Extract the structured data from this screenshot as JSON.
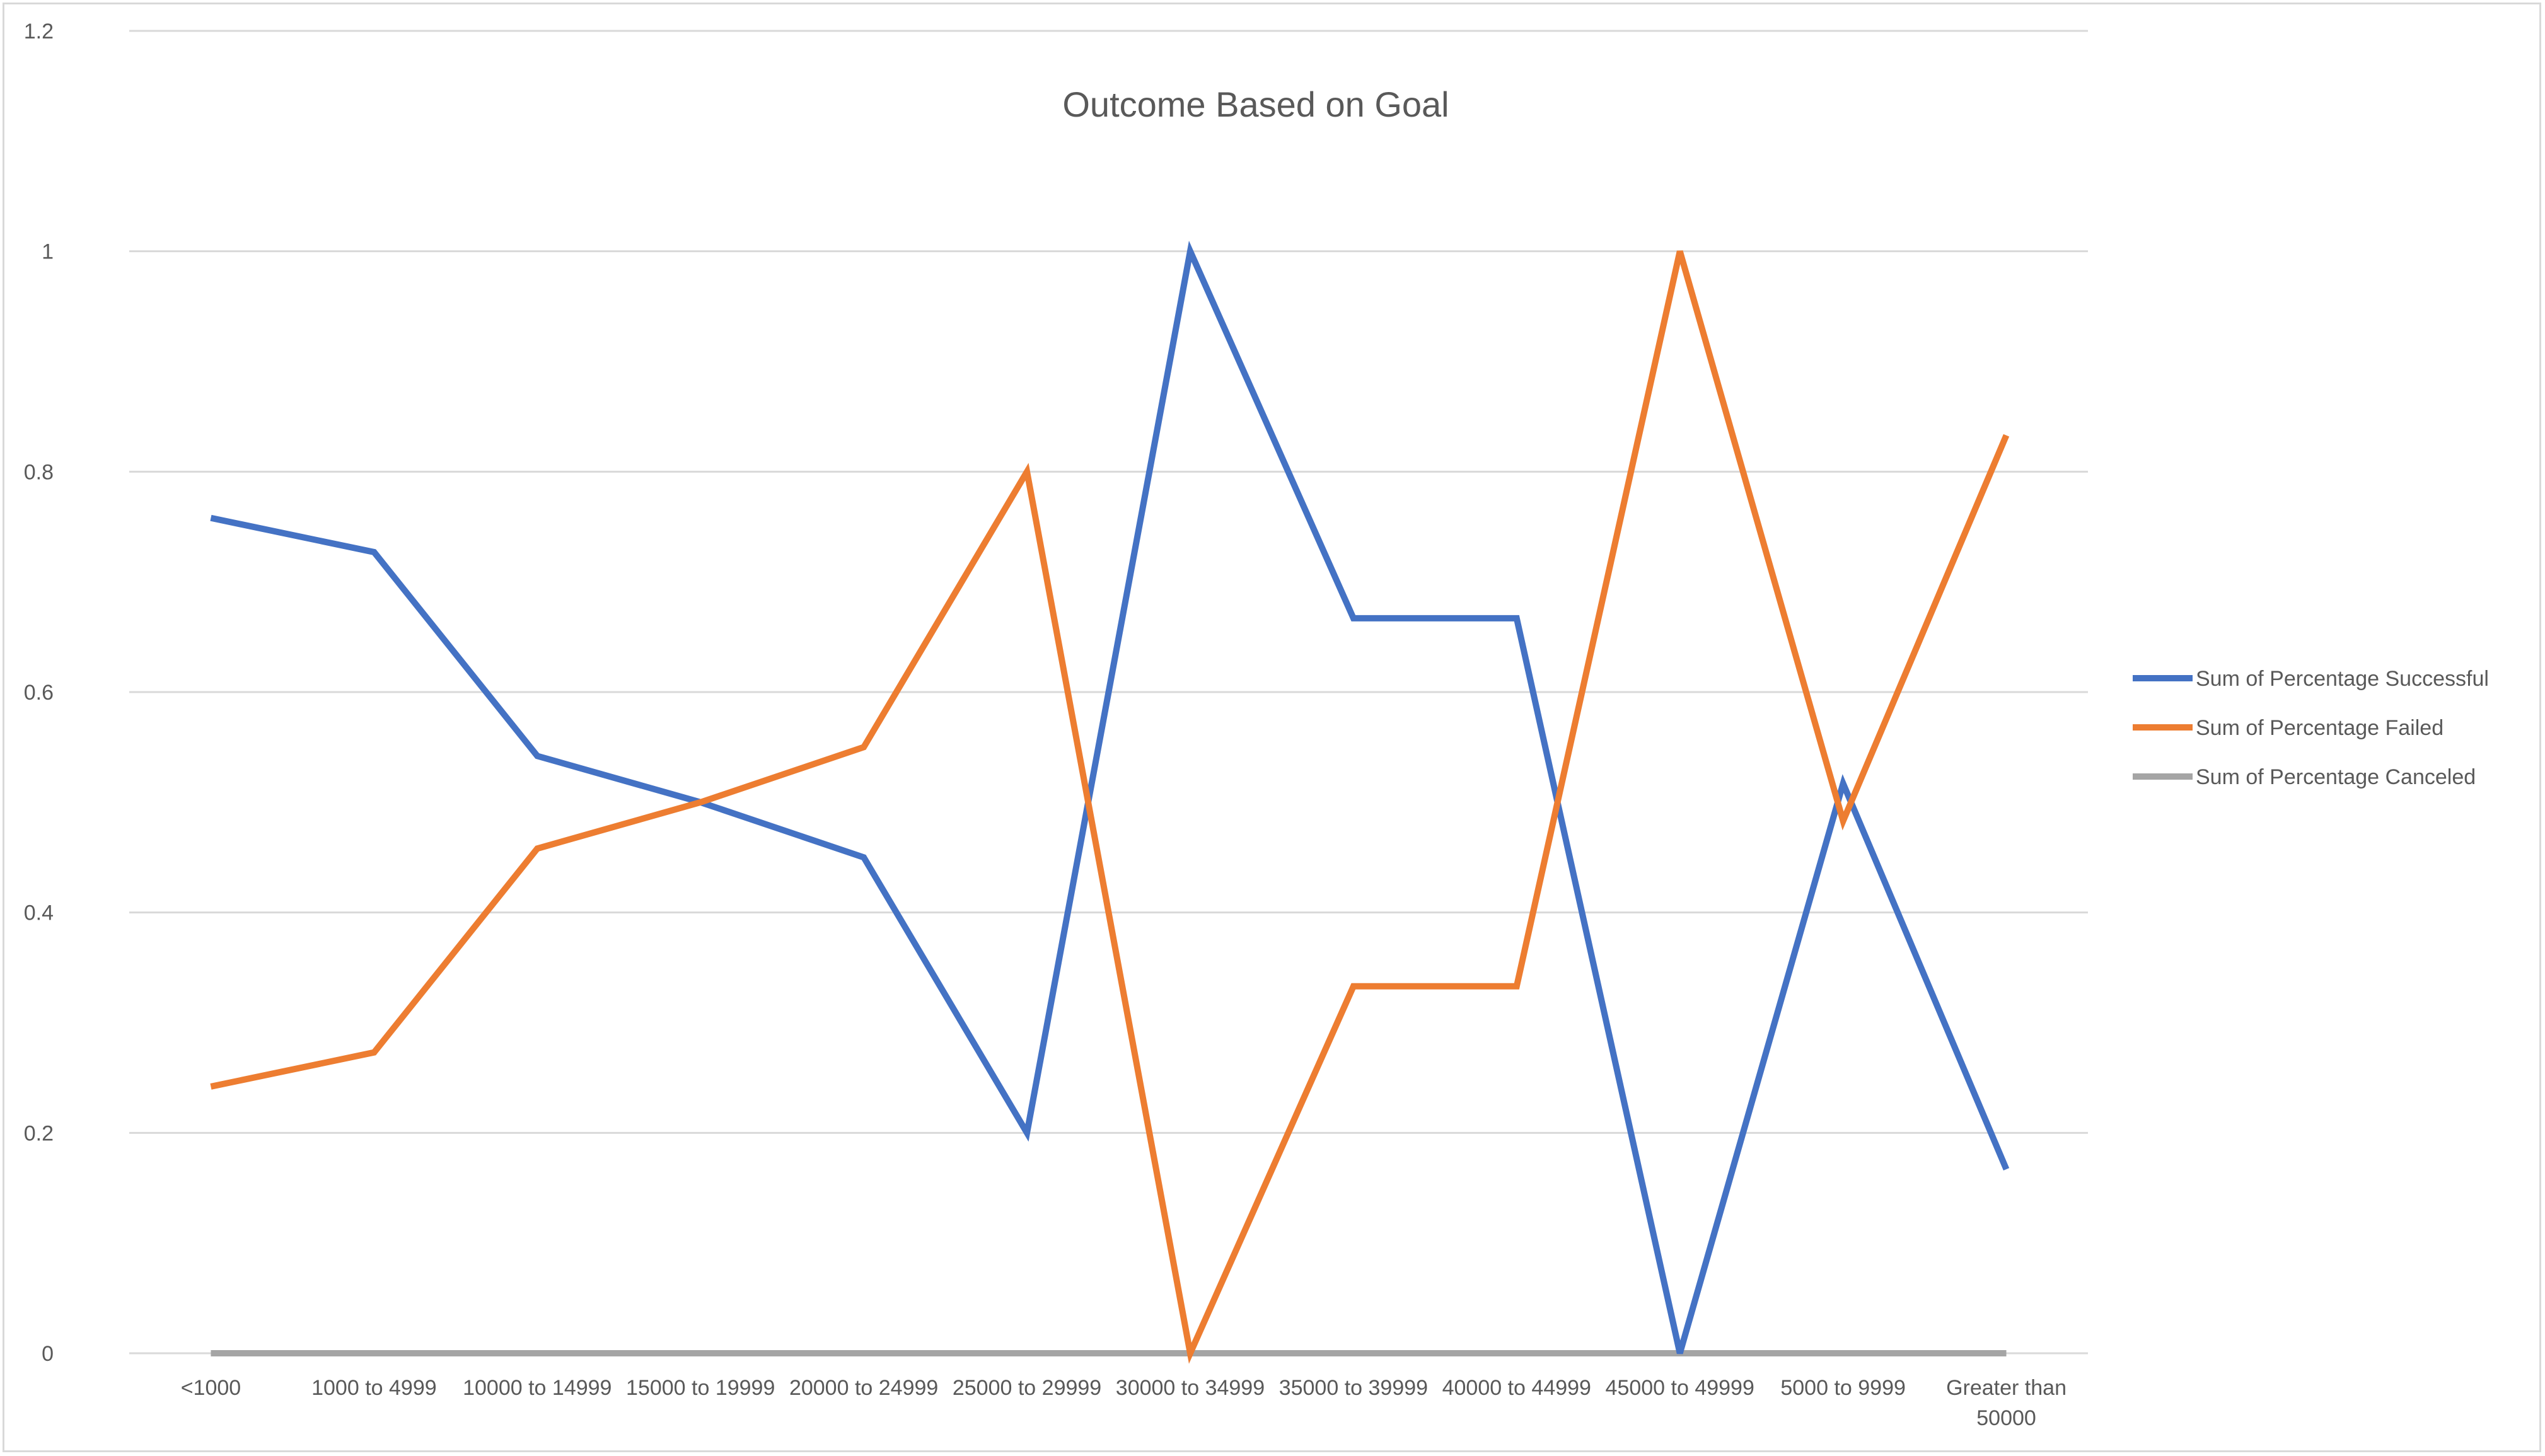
{
  "chart_data": {
    "type": "line",
    "title": "Outcome Based on Goal",
    "xlabel": "",
    "ylabel": "",
    "ylim": [
      0,
      1.2
    ],
    "yticks": [
      "0",
      "0.2",
      "0.4",
      "0.6",
      "0.8",
      "1",
      "1.2"
    ],
    "grid": true,
    "legend_position": "right",
    "categories": [
      "<1000",
      "1000 to 4999",
      "10000 to 14999",
      "15000 to 19999",
      "20000 to 24999",
      "25000 to 29999",
      "30000 to 34999",
      "35000 to 39999",
      "40000 to 44999",
      "45000 to 49999",
      "5000 to 9999",
      "Greater than 50000"
    ],
    "series": [
      {
        "name": "Sum of Percentage Successful",
        "color": "#4472c4",
        "values": [
          0.758,
          0.727,
          0.542,
          0.5,
          0.45,
          0.2,
          1.0,
          0.667,
          0.667,
          0.0,
          0.517,
          0.167
        ]
      },
      {
        "name": "Sum of Percentage Failed",
        "color": "#ed7d31",
        "values": [
          0.242,
          0.273,
          0.458,
          0.5,
          0.55,
          0.8,
          0.0,
          0.333,
          0.333,
          1.0,
          0.483,
          0.833
        ]
      },
      {
        "name": "Sum of Percentage Canceled",
        "color": "#a5a5a5",
        "values": [
          0,
          0,
          0,
          0,
          0,
          0,
          0,
          0,
          0,
          0,
          0,
          0
        ]
      }
    ]
  }
}
